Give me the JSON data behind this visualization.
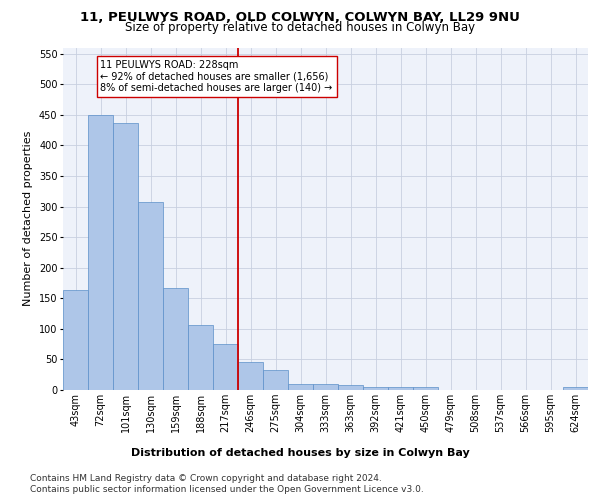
{
  "title1": "11, PEULWYS ROAD, OLD COLWYN, COLWYN BAY, LL29 9NU",
  "title2": "Size of property relative to detached houses in Colwyn Bay",
  "xlabel": "Distribution of detached houses by size in Colwyn Bay",
  "ylabel": "Number of detached properties",
  "bar_labels": [
    "43sqm",
    "72sqm",
    "101sqm",
    "130sqm",
    "159sqm",
    "188sqm",
    "217sqm",
    "246sqm",
    "275sqm",
    "304sqm",
    "333sqm",
    "363sqm",
    "392sqm",
    "421sqm",
    "450sqm",
    "479sqm",
    "508sqm",
    "537sqm",
    "566sqm",
    "595sqm",
    "624sqm"
  ],
  "bar_values": [
    163,
    450,
    437,
    308,
    167,
    106,
    75,
    45,
    33,
    10,
    10,
    8,
    5,
    5,
    5,
    0,
    0,
    0,
    0,
    0,
    5
  ],
  "bar_color": "#aec6e8",
  "bar_edge_color": "#5b8fc9",
  "vline_index": 6,
  "vline_color": "#cc0000",
  "annotation_text": "11 PEULWYS ROAD: 228sqm\n← 92% of detached houses are smaller (1,656)\n8% of semi-detached houses are larger (140) →",
  "annotation_box_color": "#ffffff",
  "annotation_box_edge": "#cc0000",
  "ylim": [
    0,
    560
  ],
  "yticks": [
    0,
    50,
    100,
    150,
    200,
    250,
    300,
    350,
    400,
    450,
    500,
    550
  ],
  "grid_color": "#c8d0e0",
  "background_color": "#eef2fa",
  "footer_line1": "Contains HM Land Registry data © Crown copyright and database right 2024.",
  "footer_line2": "Contains public sector information licensed under the Open Government Licence v3.0.",
  "title_fontsize": 9.5,
  "subtitle_fontsize": 8.5,
  "axis_label_fontsize": 8,
  "tick_fontsize": 7,
  "footer_fontsize": 6.5,
  "annotation_fontsize": 7
}
